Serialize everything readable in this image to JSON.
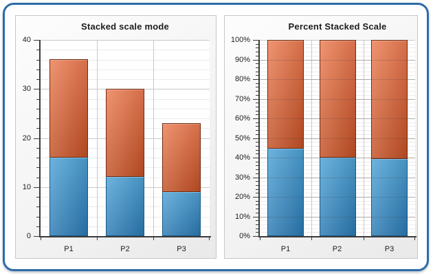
{
  "style": {
    "frame_border_color": "#2d6ba8",
    "panel_border_color": "#c6c6c6",
    "axis_color": "#3b3b3b",
    "major_grid_color": "#c9c9c9",
    "minor_grid_color": "#ebebeb",
    "text_color": "#1c1c1c"
  },
  "chart_data": [
    {
      "type": "bar",
      "stacking": "stacked",
      "title": "Stacked scale mode",
      "categories": [
        "P1",
        "P2",
        "P3"
      ],
      "series": [
        {
          "name": "blue",
          "values": [
            16,
            12,
            9
          ],
          "color_light": "#4ea2d6",
          "color_dark": "#2a79b2",
          "color_border": "#1a5885",
          "color_highlight": "#7fc2ea"
        },
        {
          "name": "orange",
          "values": [
            20,
            18,
            14
          ],
          "color_light": "#ec7c52",
          "color_dark": "#c24f24",
          "color_border": "#6f2a0f"
        }
      ],
      "stack_totals": [
        36,
        30,
        23
      ],
      "y_axis": {
        "min": 0,
        "max": 40,
        "major_step": 10,
        "minor_step": 2,
        "tick_labels": [
          "0",
          "10",
          "20",
          "30",
          "40"
        ]
      },
      "x_axis": {
        "tick_labels": [
          "P1",
          "P2",
          "P3"
        ]
      },
      "grid": {
        "major": true,
        "minor": true
      },
      "legend": "none"
    },
    {
      "type": "bar",
      "stacking": "percent",
      "title": "Percent Stacked Scale",
      "categories": [
        "P1",
        "P2",
        "P3"
      ],
      "series": [
        {
          "name": "blue",
          "values": [
            16,
            12,
            9
          ],
          "color_light": "#4ea2d6",
          "color_dark": "#2a79b2",
          "color_border": "#1a5885",
          "color_highlight": "#7fc2ea"
        },
        {
          "name": "orange",
          "values": [
            20,
            18,
            14
          ],
          "color_light": "#ec7c52",
          "color_dark": "#c24f24",
          "color_border": "#6f2a0f"
        }
      ],
      "blue_percentages": [
        44.4,
        40.0,
        39.1
      ],
      "y_axis": {
        "min": 0,
        "max": 100,
        "major_step": 10,
        "minor_step": 2,
        "tick_labels": [
          "0%",
          "10%",
          "20%",
          "30%",
          "40%",
          "50%",
          "60%",
          "70%",
          "80%",
          "90%",
          "100%"
        ]
      },
      "x_axis": {
        "tick_labels": [
          "P1",
          "P2",
          "P3"
        ]
      },
      "grid": {
        "major": true,
        "minor": true
      },
      "legend": "none"
    }
  ]
}
